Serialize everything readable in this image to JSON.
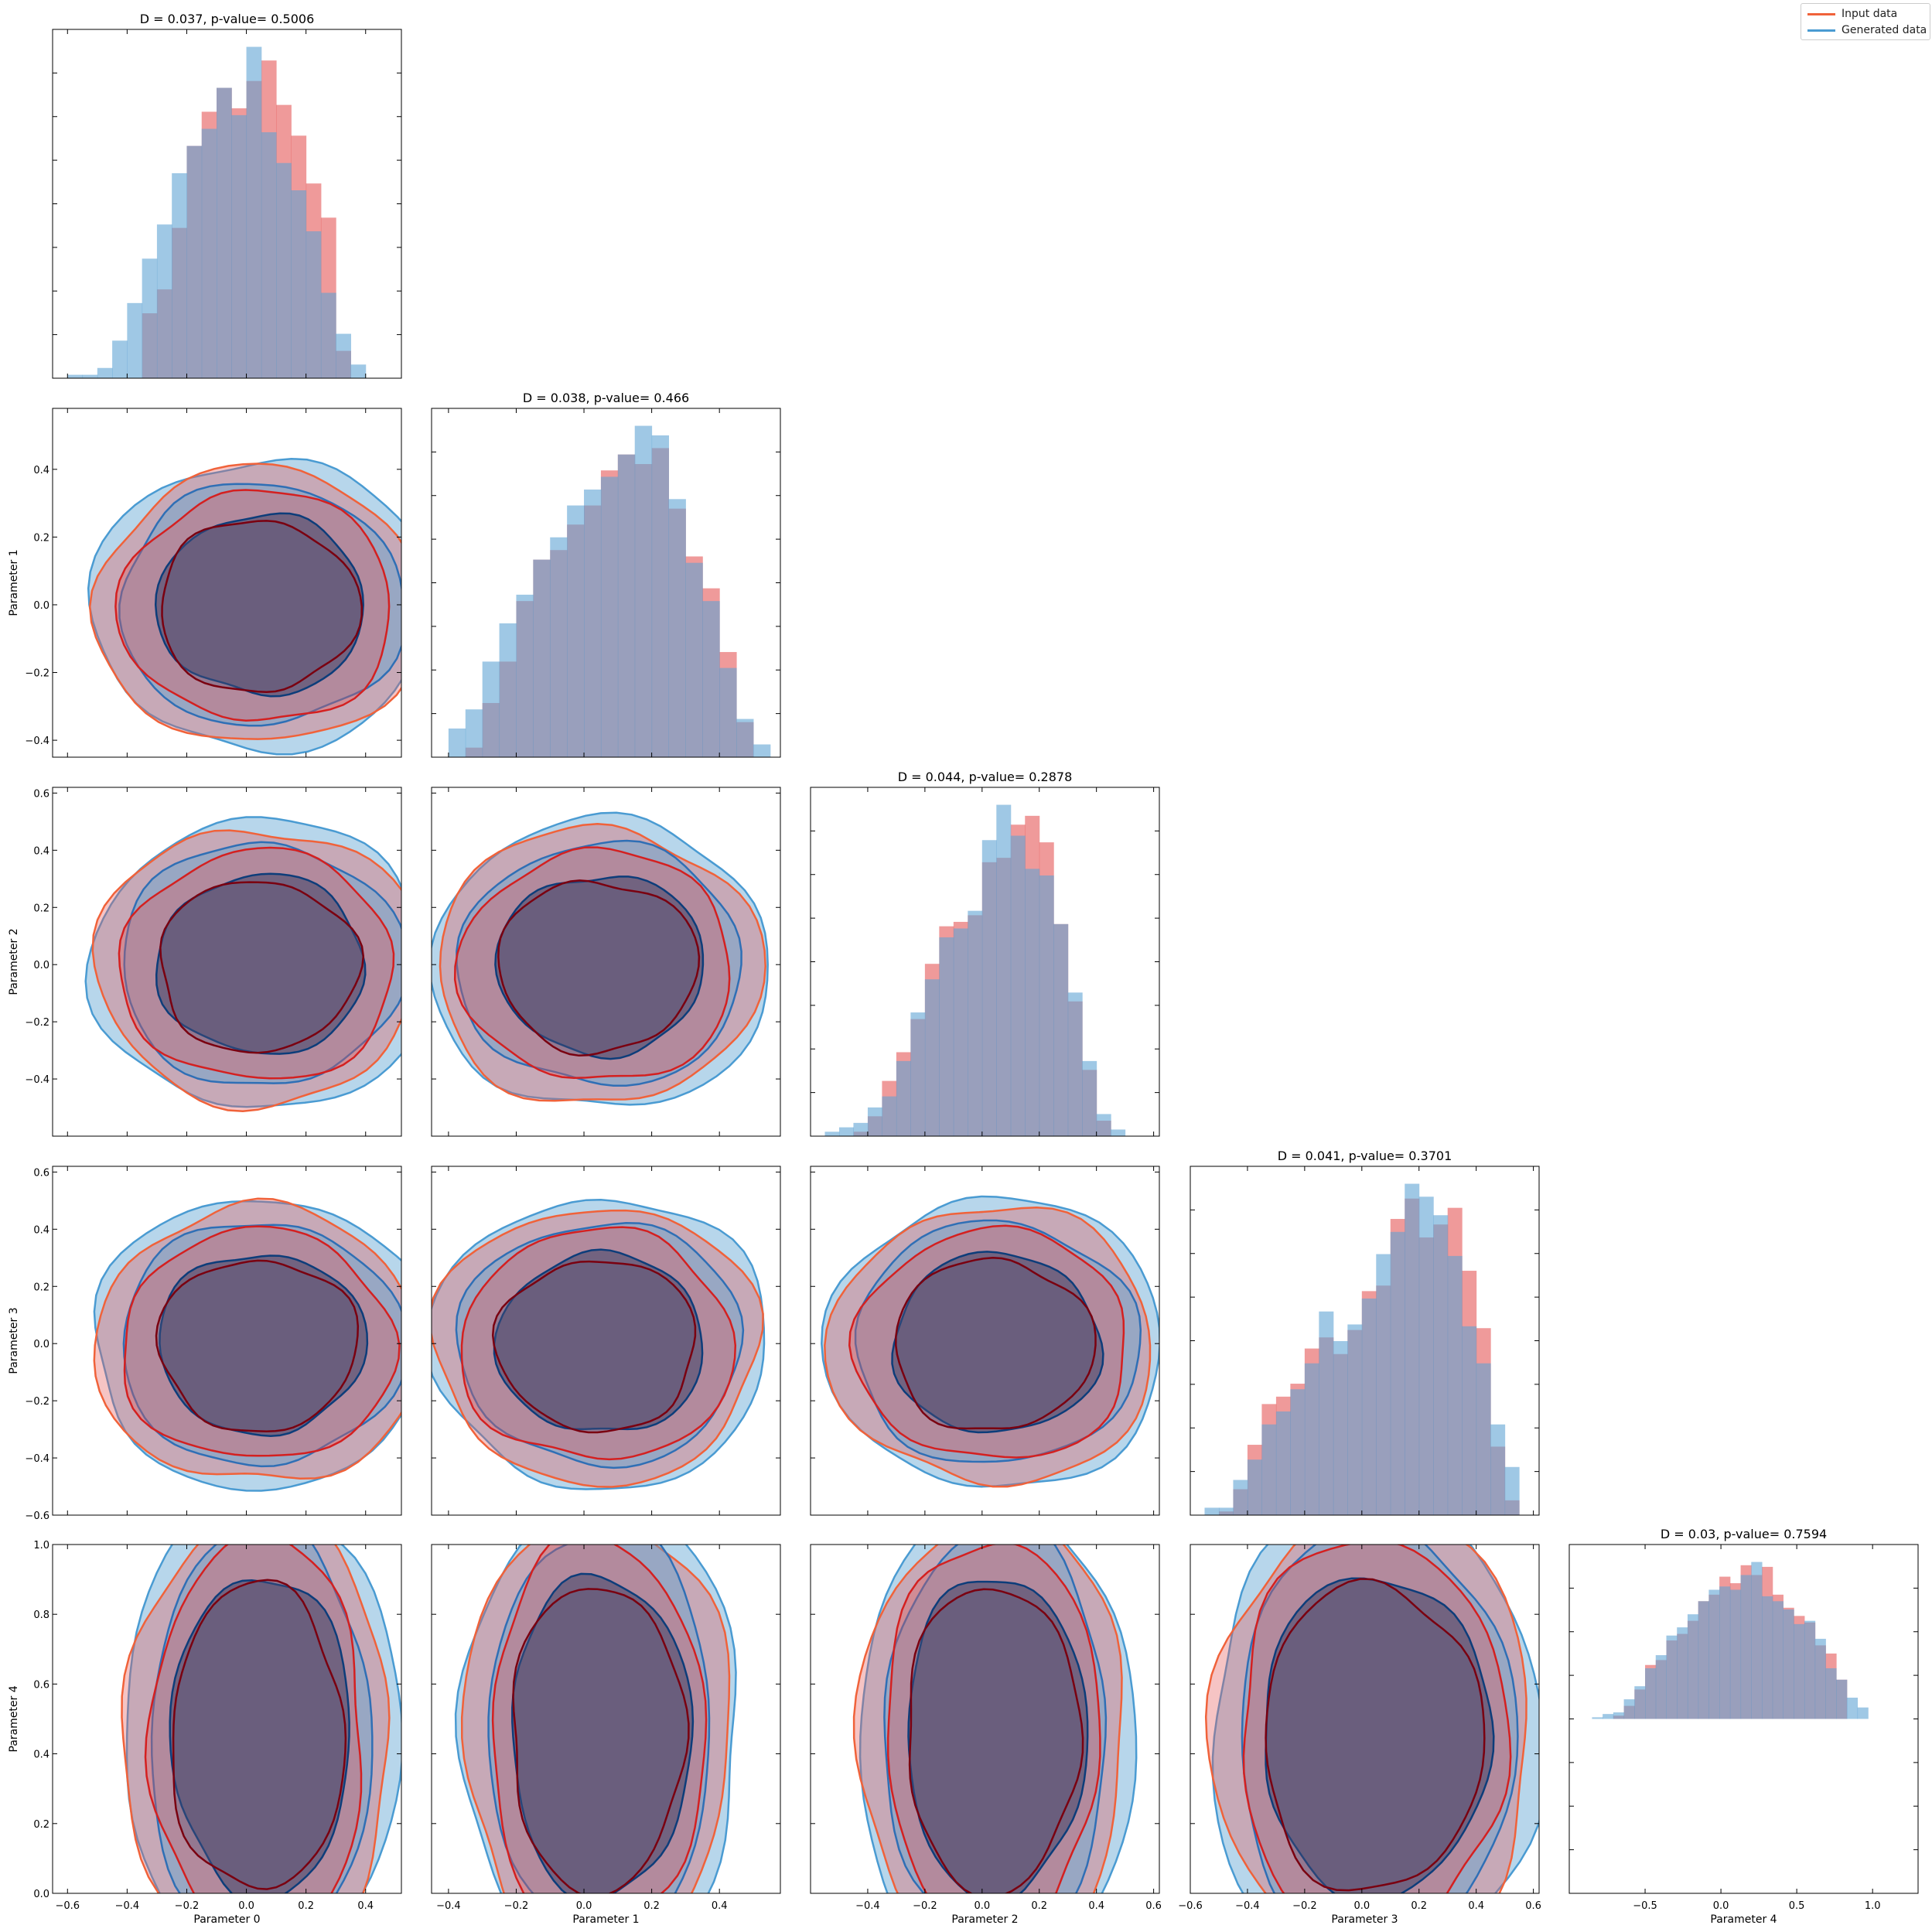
{
  "legend": {
    "input_label": "Input data",
    "generated_label": "Generated data"
  },
  "colors": {
    "input": "#e45756",
    "input_line": "#f0623a",
    "input_dark": "#7a0010",
    "generated": "#5fa4d3",
    "generated_line": "#4a9bd2",
    "generated_dark": "#0d3d7a",
    "overlap": "#5c5577"
  },
  "chart_data": {
    "type": "corner",
    "parameters": [
      "Parameter 0",
      "Parameter 1",
      "Parameter 2",
      "Parameter 3",
      "Parameter 4"
    ],
    "ranges": [
      [
        -0.65,
        0.52
      ],
      [
        -0.45,
        0.58
      ],
      [
        -0.6,
        0.62
      ],
      [
        -0.6,
        0.62
      ],
      [
        0.0,
        1.0
      ]
    ],
    "ticks": [
      [
        -0.6,
        -0.4,
        -0.2,
        0.0,
        0.2,
        0.4
      ],
      [
        -0.4,
        -0.2,
        0.0,
        0.2,
        0.4
      ],
      [
        -0.4,
        -0.2,
        0.0,
        0.2,
        0.4,
        0.6
      ],
      [
        -0.6,
        -0.4,
        -0.2,
        0.0,
        0.2,
        0.4,
        0.6
      ],
      [
        0.0,
        0.2,
        0.4,
        0.6,
        0.8,
        1.0
      ]
    ],
    "diag_ticks": [
      [],
      [],
      [],
      [],
      [
        -0.5,
        0.0,
        0.5,
        1.0
      ]
    ],
    "diag_ranges": [
      null,
      null,
      null,
      null,
      [
        -1.0,
        1.3
      ]
    ],
    "diagonals": [
      {
        "title": "D = 0.037, p-value= 0.5006",
        "x_start": -0.6,
        "bin_width": 0.05,
        "input": [
          0,
          0,
          0,
          0,
          0,
          19,
          26,
          44,
          68,
          78,
          85,
          79,
          87,
          93,
          80,
          71,
          57,
          47,
          8,
          0
        ],
        "generated": [
          1,
          1,
          3,
          11,
          22,
          35,
          45,
          60,
          68,
          73,
          85,
          77,
          97,
          72,
          63,
          55,
          43,
          25,
          13,
          4
        ]
      },
      {
        "title": "D = 0.038, p-value= 0.466",
        "x_start": -0.4,
        "bin_width": 0.05,
        "input": [
          0,
          3,
          17,
          30,
          49,
          62,
          65,
          73,
          79,
          90,
          95,
          92,
          97,
          78,
          63,
          53,
          33,
          11,
          0
        ],
        "generated": [
          9,
          15,
          30,
          42,
          51,
          62,
          69,
          79,
          84,
          88,
          95,
          104,
          101,
          81,
          61,
          49,
          28,
          12,
          4
        ]
      },
      {
        "title": "D = 0.044, p-value= 0.2878",
        "x_start": -0.55,
        "bin_width": 0.05,
        "input": [
          0,
          0,
          2,
          9,
          25,
          38,
          53,
          78,
          95,
          97,
          100,
          124,
          126,
          141,
          145,
          133,
          96,
          61,
          30,
          7,
          0
        ],
        "generated": [
          2,
          4,
          6,
          13,
          18,
          34,
          56,
          71,
          90,
          94,
          102,
          134,
          150,
          136,
          121,
          118,
          96,
          65,
          34,
          10,
          3
        ]
      },
      {
        "title": "D = 0.041, p-value= 0.3701",
        "x_start": -0.55,
        "bin_width": 0.05,
        "input": [
          0,
          2,
          14,
          38,
          60,
          64,
          71,
          90,
          96,
          87,
          100,
          121,
          124,
          160,
          171,
          150,
          157,
          166,
          132,
          101,
          37,
          8
        ],
        "generated": [
          4,
          4,
          19,
          30,
          49,
          56,
          68,
          82,
          110,
          94,
          103,
          117,
          141,
          153,
          179,
          172,
          162,
          140,
          102,
          82,
          49,
          26
        ]
      },
      {
        "title": "D = 0.03, p-value= 0.7594",
        "x_start": -0.85,
        "bin_width": 0.07,
        "input": [
          0,
          0,
          2,
          8,
          18,
          33,
          36,
          48,
          52,
          60,
          72,
          76,
          87,
          83,
          94,
          88,
          93,
          76,
          68,
          63,
          59,
          45,
          40,
          24,
          0,
          0
        ],
        "generated": [
          1,
          3,
          4,
          12,
          20,
          31,
          39,
          51,
          56,
          64,
          72,
          79,
          81,
          79,
          88,
          96,
          75,
          72,
          67,
          58,
          60,
          49,
          31,
          24,
          13,
          7
        ]
      }
    ]
  }
}
